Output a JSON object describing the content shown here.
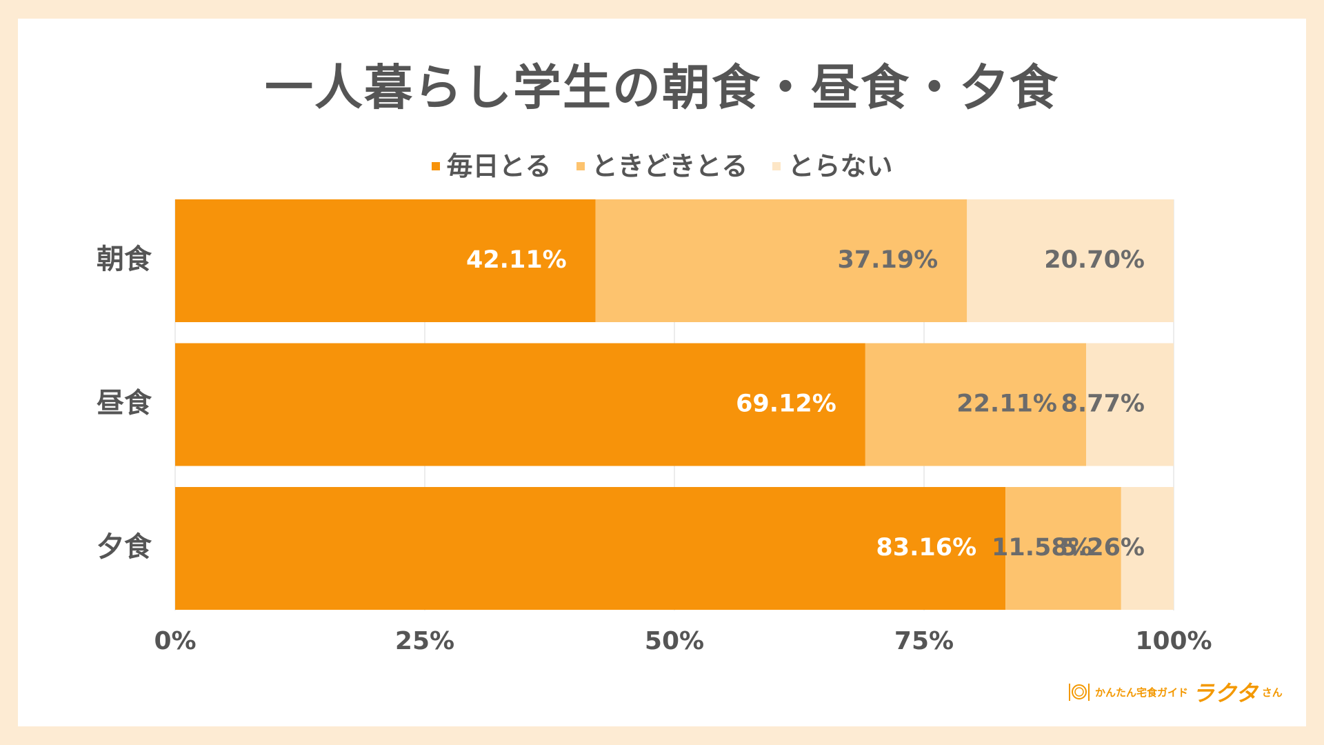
{
  "colors": {
    "background": "#fdebd3",
    "card": "#ffffff",
    "daily": "#f7930a",
    "sometimes": "#fdc36e",
    "never": "#fde6c6",
    "text": "#555555",
    "label_dark": "#6b6b6b",
    "label_light": "#ffffff"
  },
  "logo": {
    "subtitle": "かんたん宅食ガイド",
    "name": "ラクタ",
    "suffix": "さん",
    "icon": "plate-fork-knife-icon"
  },
  "chart_data": {
    "type": "bar",
    "orientation": "horizontal",
    "stacked": "percent",
    "title": "一人暮らし学生の朝食・昼食・夕食",
    "categories": [
      "朝食",
      "昼食",
      "夕食"
    ],
    "series": [
      {
        "name": "毎日とる",
        "values": [
          42.11,
          69.12,
          83.16
        ],
        "labels": [
          "42.11%",
          "69.12%",
          "83.16%"
        ]
      },
      {
        "name": "ときどきとる",
        "values": [
          37.19,
          22.11,
          11.58
        ],
        "labels": [
          "37.19%",
          "22.11%",
          "11.58%"
        ]
      },
      {
        "name": "とらない",
        "values": [
          20.7,
          8.77,
          5.26
        ],
        "labels": [
          "20.70%",
          "8.77%",
          "5.26%"
        ]
      }
    ],
    "xlim": [
      0,
      100
    ],
    "x_ticks": [
      "0%",
      "25%",
      "50%",
      "75%",
      "100%"
    ],
    "grid": true,
    "legend_position": "top-center"
  }
}
